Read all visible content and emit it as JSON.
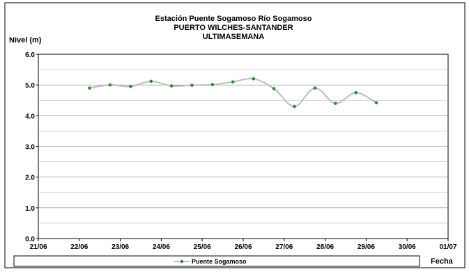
{
  "chart_data": {
    "type": "line",
    "title": [
      "Estación Puente Sogamoso Río Sogamoso",
      "PUERTO WILCHES-SANTANDER",
      "ULTIMASEMANA"
    ],
    "ylabel": "Nivel (m)",
    "xlabel": "Fecha",
    "ylim": [
      0.0,
      6.0
    ],
    "y_ticks": [
      "0.0",
      "1.0",
      "2.0",
      "3.0",
      "4.0",
      "5.0",
      "6.0"
    ],
    "x_ticks": [
      "21/06",
      "22/06",
      "23/06",
      "24/06",
      "25/06",
      "26/06",
      "27/06",
      "28/06",
      "29/06",
      "30/06",
      "01/07"
    ],
    "xlim_days": [
      0,
      10
    ],
    "grid": "horizontal",
    "legend_position": "bottom",
    "series": [
      {
        "name": "Puente Sogamoso",
        "line_color": "#c0c0c0",
        "marker_color": "#2e8b2e",
        "x": [
          1.25,
          1.75,
          2.25,
          2.75,
          3.25,
          3.75,
          4.25,
          4.75,
          5.25,
          5.75,
          6.25,
          6.75,
          7.25,
          7.75,
          8.25
        ],
        "values": [
          4.9,
          5.0,
          4.95,
          5.12,
          4.97,
          4.99,
          5.01,
          5.1,
          5.2,
          4.88,
          4.3,
          4.9,
          4.4,
          4.75,
          4.42
        ]
      }
    ]
  }
}
